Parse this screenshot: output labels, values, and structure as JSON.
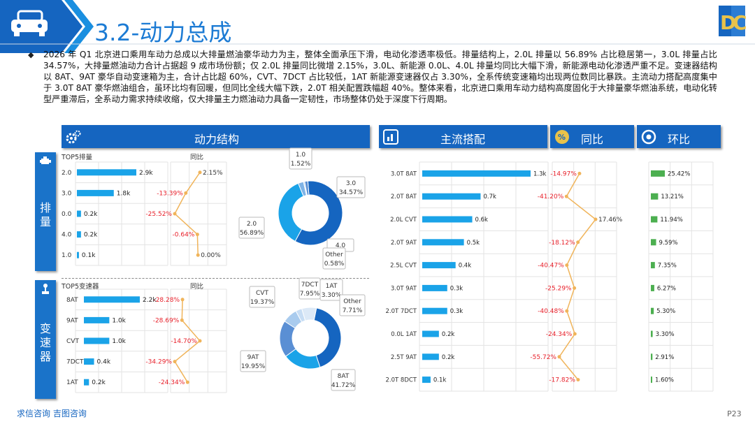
{
  "header": {
    "title": "3.2-动力总成",
    "logo_text": "DC"
  },
  "summary": "2026 年 Q1 北京进口乘用车动力总成以大排量燃油豪华动力为主，整体全面承压下滑，电动化渗透率极低。排量结构上，2.0L 排量以 56.89% 占比稳居第一，3.0L 排量占比 34.57%，大排量燃油动力合计占据超 9 成市场份额；仅 2.0L 排量同比微增 2.15%，3.0L、新能源 0.0L、4.0L 排量均同比大幅下滑，新能源电动化渗透严重不足。变速器结构以 8AT、9AT 豪华自动变速箱为主，合计占比超 60%，CVT、7DCT 占比较低，1AT 新能源变速器仅占 3.30%，全系传统变速箱均出现两位数同比暴跌。主流动力搭配高度集中于 3.0T 8AT 豪华燃油组合，虽环比均有回暖，但同比全线大幅下跌，2.0T 相关配置跌幅超 40%。整体来看，北京进口乘用车动力结构高度固化于大排量豪华燃油系统，电动化转型严重滞后，全系动力需求持续收缩，仅大排量主力燃油动力具备一定韧性，市场整体仍处于深度下行周期。",
  "headers": {
    "structure": "动力结构",
    "pairing": "主流搭配",
    "yoy": "同比",
    "mom": "环比"
  },
  "side": {
    "displacement": [
      "排",
      "量"
    ],
    "gearbox": [
      "变",
      "速",
      "器"
    ]
  },
  "colors": {
    "accent": "#1565c0",
    "bar": "#1aa3e8",
    "line": "#f0b45a",
    "neg": "#e8212b",
    "green": "#4caf50"
  },
  "displacement": {
    "top_title": "TOP5排量",
    "yoy_title": "同比"
  },
  "gearbox": {
    "top_title": "TOP5变速器",
    "yoy_title": "同比"
  },
  "footer": {
    "text": "求信咨询 吉图咨询",
    "page": "P23"
  },
  "chart_data": [
    {
      "type": "bar",
      "name": "TOP5排量",
      "categories": [
        "2.0",
        "3.0",
        "0.0",
        "4.0",
        "1.0"
      ],
      "values": [
        2.9,
        1.8,
        0.2,
        0.2,
        0.1
      ],
      "labels": [
        "2.9k",
        "1.8k",
        "0.2k",
        "0.2k",
        "0.1k"
      ]
    },
    {
      "type": "line",
      "name": "排量同比",
      "categories": [
        "2.0",
        "3.0",
        "0.0",
        "4.0",
        "1.0"
      ],
      "values": [
        2.15,
        -13.39,
        -25.52,
        -0.64,
        0.0
      ],
      "labels": [
        "2.15%",
        "-13.39%",
        "-25.52%",
        "-0.64%",
        "0.00%"
      ]
    },
    {
      "type": "pie",
      "name": "排量占比",
      "categories": [
        "2.0",
        "3.0",
        "4.0",
        "Other",
        "1.0"
      ],
      "values": [
        56.89,
        34.57,
        2.6,
        0.58,
        1.52
      ],
      "labels": [
        "56.89%",
        "34.57%",
        "",
        "0.58%",
        "1.52%"
      ],
      "colors": [
        "#1565c0",
        "#1aa3e8",
        "#7fb3e6",
        "#a9cbee",
        "#5a8fd4"
      ]
    },
    {
      "type": "bar",
      "name": "TOP5变速器",
      "categories": [
        "8AT",
        "9AT",
        "CVT",
        "7DCT",
        "1AT"
      ],
      "values": [
        2.2,
        1.0,
        1.0,
        0.4,
        0.2
      ],
      "labels": [
        "2.2k",
        "1.0k",
        "1.0k",
        "0.4k",
        "0.2k"
      ]
    },
    {
      "type": "line",
      "name": "变速器同比",
      "categories": [
        "8AT",
        "9AT",
        "CVT",
        "7DCT",
        "1AT"
      ],
      "values": [
        -28.28,
        -28.69,
        -14.7,
        -34.29,
        -24.34
      ],
      "labels": [
        "-28.28%",
        "-28.69%",
        "-14.70%",
        "-34.29%",
        "-24.34%"
      ]
    },
    {
      "type": "pie",
      "name": "变速器占比",
      "categories": [
        "8AT",
        "9AT",
        "CVT",
        "7DCT",
        "1AT",
        "Other"
      ],
      "values": [
        41.72,
        19.95,
        19.37,
        7.95,
        3.3,
        7.71
      ],
      "labels": [
        "41.72%",
        "19.95%",
        "19.37%",
        "7.95%",
        "3.30%",
        "7.71%"
      ],
      "colors": [
        "#1565c0",
        "#1aa3e8",
        "#5a8fd4",
        "#a9cbee",
        "#c7ddf4",
        "#dce9f7"
      ]
    },
    {
      "type": "bar",
      "name": "主流搭配",
      "categories": [
        "3.0T 8AT",
        "2.0T 8AT",
        "2.0L CVT",
        "2.0T 9AT",
        "2.5L CVT",
        "3.0T 9AT",
        "2.0T 7DCT",
        "0.0L 1AT",
        "2.5T 9AT",
        "2.0T 8DCT"
      ],
      "values": [
        1.3,
        0.7,
        0.6,
        0.5,
        0.4,
        0.3,
        0.3,
        0.2,
        0.2,
        0.1
      ],
      "labels": [
        "1.3k",
        "0.7k",
        "0.6k",
        "0.5k",
        "0.4k",
        "0.3k",
        "0.3k",
        "0.2k",
        "0.2k",
        "0.1k"
      ]
    },
    {
      "type": "line",
      "name": "主流搭配同比",
      "categories": [
        "3.0T 8AT",
        "2.0T 8AT",
        "2.0L CVT",
        "2.0T 9AT",
        "2.5L CVT",
        "3.0T 9AT",
        "2.0T 7DCT",
        "0.0L 1AT",
        "2.5T 9AT",
        "2.0T 8DCT"
      ],
      "values": [
        -14.97,
        -41.2,
        17.46,
        -18.12,
        -40.47,
        -25.29,
        -40.48,
        -24.34,
        -55.72,
        -17.82
      ],
      "labels": [
        "-14.97%",
        "-41.20%",
        "17.46%",
        "-18.12%",
        "-40.47%",
        "-25.29%",
        "-40.48%",
        "-24.34%",
        "-55.72%",
        "-17.82%"
      ]
    },
    {
      "type": "bar",
      "name": "主流搭配环比",
      "categories": [
        "3.0T 8AT",
        "2.0T 8AT",
        "2.0L CVT",
        "2.0T 9AT",
        "2.5L CVT",
        "3.0T 9AT",
        "2.0T 7DCT",
        "0.0L 1AT",
        "2.5T 9AT",
        "2.0T 8DCT"
      ],
      "values": [
        25.42,
        13.21,
        11.94,
        9.59,
        7.35,
        6.27,
        5.3,
        3.3,
        2.91,
        1.6
      ],
      "labels": [
        "25.42%",
        "13.21%",
        "11.94%",
        "9.59%",
        "7.35%",
        "6.27%",
        "5.30%",
        "3.30%",
        "2.91%",
        "1.60%"
      ]
    }
  ]
}
